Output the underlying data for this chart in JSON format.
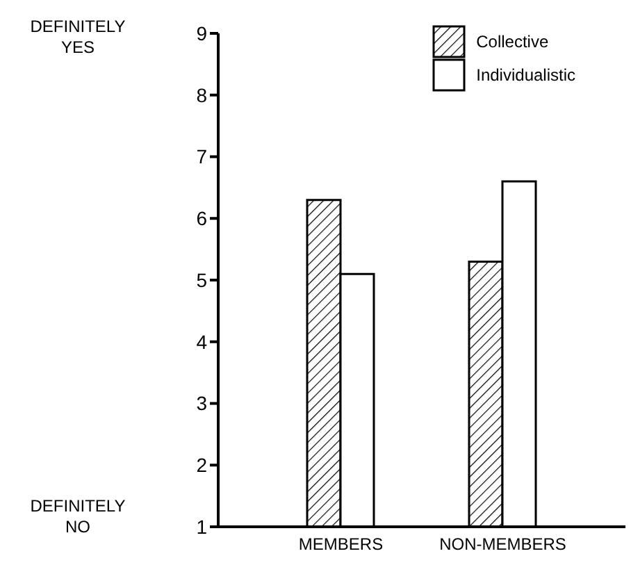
{
  "chart_data": {
    "type": "bar",
    "categories": [
      "MEMBERS",
      "NON-MEMBERS"
    ],
    "series": [
      {
        "name": "Collective",
        "color": "#000000",
        "values": [
          6.3,
          5.3
        ]
      },
      {
        "name": "Individualistic",
        "color": "#ffffff",
        "values": [
          5.1,
          6.6
        ]
      }
    ],
    "ylim": [
      1,
      9
    ],
    "yticks": [
      1,
      2,
      3,
      4,
      5,
      6,
      7,
      8,
      9
    ],
    "grid": false,
    "legend": "top right",
    "annotations": [
      "DEFINITELY YES",
      "DEFINITELY NO"
    ]
  }
}
